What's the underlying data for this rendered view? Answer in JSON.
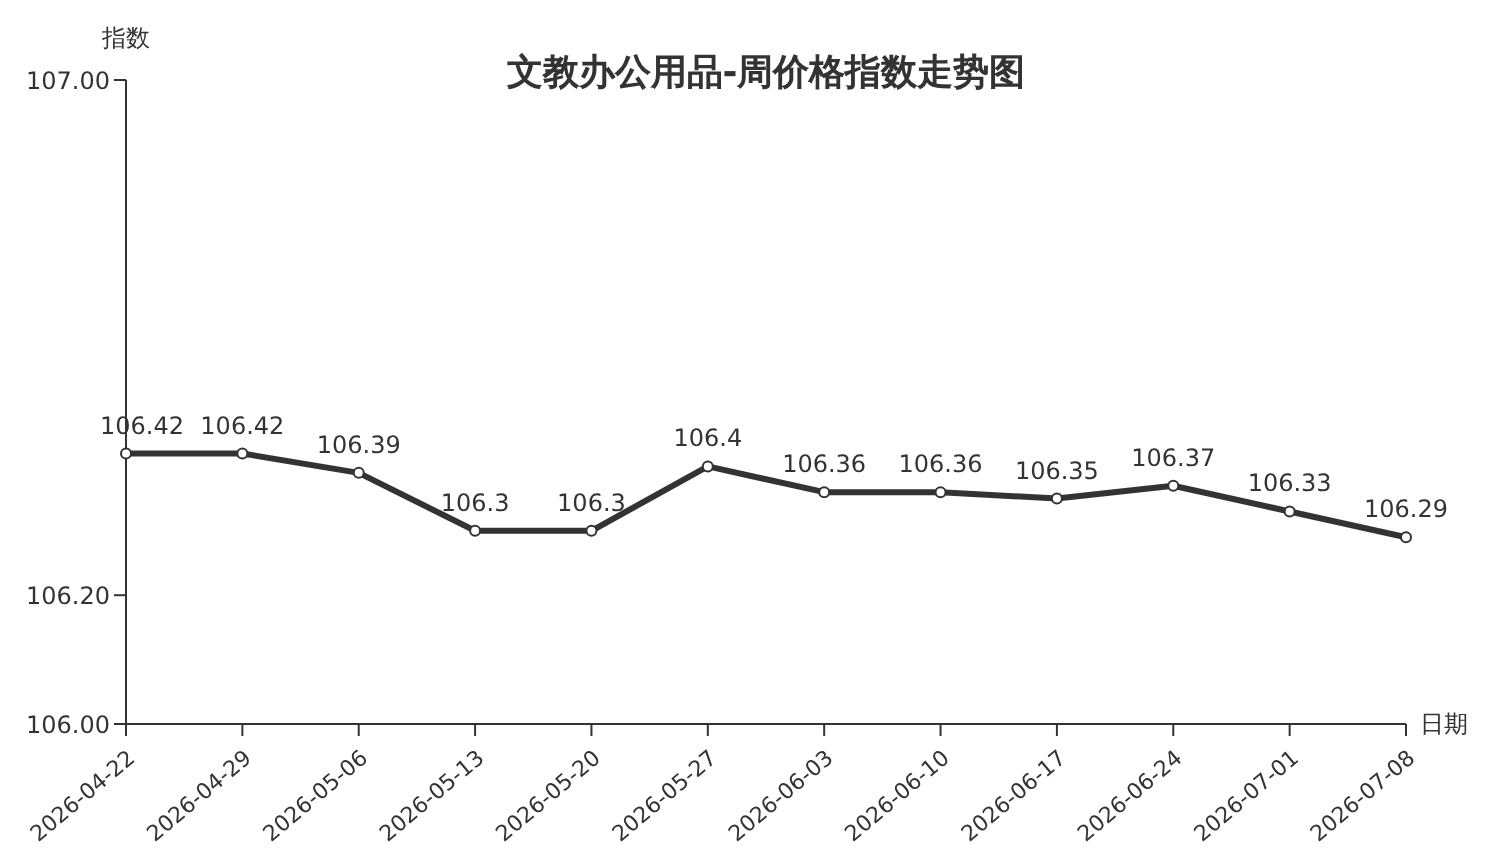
{
  "chart_data": {
    "type": "line",
    "title": "文教办公用品-周价格指数走势图",
    "xlabel": "日期",
    "ylabel": "指数",
    "categories": [
      "2026-04-22",
      "2026-04-29",
      "2026-05-06",
      "2026-05-13",
      "2026-05-20",
      "2026-05-27",
      "2026-06-03",
      "2026-06-10",
      "2026-06-17",
      "2026-06-24",
      "2026-07-01",
      "2026-07-08"
    ],
    "series": [
      {
        "color": "#333333",
        "values": [
          106.42,
          106.42,
          106.39,
          106.3,
          106.3,
          106.4,
          106.36,
          106.36,
          106.35,
          106.37,
          106.33,
          106.29
        ]
      }
    ],
    "ylim": [
      106,
      107
    ],
    "yticks": [
      {
        "value": 106,
        "label": "106.00"
      },
      {
        "value": 106.2,
        "label": "106.20"
      },
      {
        "value": 107,
        "label": "107.00"
      }
    ],
    "data_labels": true,
    "marker": "circle",
    "line_style": "solid",
    "grid": false,
    "legend": false
  }
}
